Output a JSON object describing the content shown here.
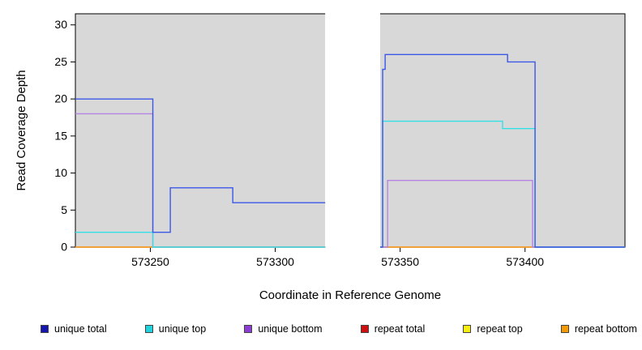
{
  "chart_data": {
    "type": "line",
    "title": "",
    "xlabel": "Coordinate in Reference Genome",
    "ylabel": "Read Coverage Depth",
    "xlim": [
      573220,
      573440
    ],
    "ylim": [
      0,
      31.5
    ],
    "x_ticks": [
      573250,
      573300,
      573350,
      573400
    ],
    "y_ticks": [
      0,
      5,
      10,
      15,
      20,
      25,
      30
    ],
    "grid": false,
    "legend_position": "bottom",
    "plot_bg": "#d8d8d8",
    "gap_region": [
      573320,
      573342
    ],
    "covered_regions": [
      [
        573220,
        573320
      ],
      [
        573342,
        573440
      ]
    ],
    "series": [
      {
        "name": "repeat total",
        "color": "#cc2222",
        "segments": [
          [
            [
              573220,
              0
            ],
            [
              573320,
              0
            ]
          ],
          [
            [
              573342,
              0
            ],
            [
              573440,
              0
            ]
          ]
        ]
      },
      {
        "name": "repeat top",
        "color": "#f0e93c",
        "segments": [
          [
            [
              573220,
              0
            ],
            [
              573320,
              0
            ]
          ],
          [
            [
              573342,
              0
            ],
            [
              573440,
              0
            ]
          ]
        ]
      },
      {
        "name": "repeat bottom",
        "color": "#f59a2b",
        "segments": [
          [
            [
              573220,
              0
            ],
            [
              573320,
              0
            ]
          ],
          [
            [
              573342,
              0
            ],
            [
              573440,
              0
            ]
          ]
        ]
      },
      {
        "name": "unique bottom",
        "color": "#b583e0",
        "segments": [
          [
            [
              573220,
              18
            ],
            [
              573251,
              18
            ],
            [
              573251,
              0
            ],
            [
              573320,
              0
            ]
          ],
          [
            [
              573342,
              0
            ],
            [
              573345,
              0
            ],
            [
              573345,
              9
            ],
            [
              573403,
              9
            ],
            [
              573403,
              0
            ],
            [
              573440,
              0
            ]
          ]
        ]
      },
      {
        "name": "unique top",
        "color": "#35dfe6",
        "segments": [
          [
            [
              573220,
              2
            ],
            [
              573251,
              2
            ],
            [
              573251,
              0
            ],
            [
              573320,
              0
            ]
          ],
          [
            [
              573342,
              0
            ],
            [
              573343,
              0
            ],
            [
              573343,
              17
            ],
            [
              573391,
              17
            ],
            [
              573391,
              16
            ],
            [
              573404,
              16
            ],
            [
              573404,
              0
            ],
            [
              573440,
              0
            ]
          ]
        ]
      },
      {
        "name": "unique total",
        "color": "#3a57e8",
        "segments": [
          [
            [
              573220,
              20
            ],
            [
              573251,
              20
            ],
            [
              573251,
              2
            ],
            [
              573258,
              2
            ],
            [
              573258,
              8
            ],
            [
              573283,
              8
            ],
            [
              573283,
              6
            ],
            [
              573320,
              6
            ]
          ],
          [
            [
              573342,
              0
            ],
            [
              573343,
              0
            ],
            [
              573343,
              24
            ],
            [
              573344,
              24
            ],
            [
              573344,
              26
            ],
            [
              573393,
              26
            ],
            [
              573393,
              25
            ],
            [
              573404,
              25
            ],
            [
              573404,
              0
            ],
            [
              573440,
              0
            ]
          ]
        ]
      }
    ]
  },
  "legend": {
    "items": [
      {
        "label": "unique total",
        "color": "#1515b0"
      },
      {
        "label": "unique top",
        "color": "#22d3dd"
      },
      {
        "label": "unique bottom",
        "color": "#8a3fd1"
      },
      {
        "label": "repeat total",
        "color": "#cc1111"
      },
      {
        "label": "repeat top",
        "color": "#f5ee11"
      },
      {
        "label": "repeat bottom",
        "color": "#f59a00"
      }
    ]
  }
}
